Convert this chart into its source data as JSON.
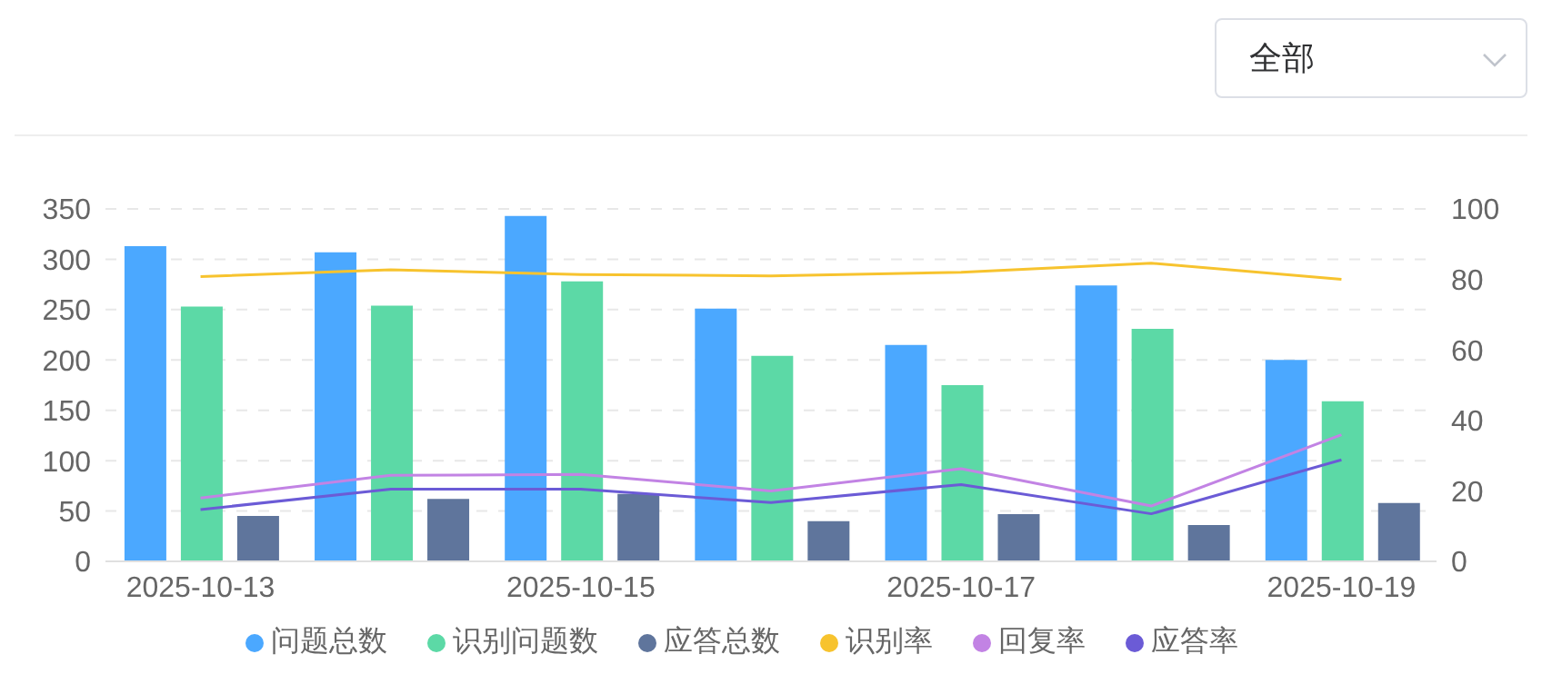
{
  "chart_data": {
    "type": "bar",
    "categories": [
      "2025-10-13",
      null,
      "2025-10-15",
      null,
      "2025-10-17",
      null,
      "2025-10-19"
    ],
    "series": [
      {
        "name": "问题总数",
        "color": "#4ba8ff",
        "values": [
          313,
          307,
          343,
          251,
          215,
          274,
          200
        ]
      },
      {
        "name": "识别问题数",
        "color": "#5cd9a6",
        "values": [
          253,
          254,
          278,
          204,
          175,
          231,
          159
        ]
      },
      {
        "name": "应答总数",
        "color": "#5f759c",
        "values": [
          45,
          62,
          67,
          40,
          47,
          36,
          58
        ]
      },
      {
        "name": "识别率",
        "type": "line",
        "axis": "y2",
        "color": "#f7c32e",
        "values": [
          80.8,
          82.7,
          81.4,
          81,
          82,
          84.6,
          80
        ]
      },
      {
        "name": "回复率",
        "type": "line",
        "axis": "y2",
        "color": "#c283e4",
        "values": [
          18,
          24.4,
          24.7,
          20,
          26.3,
          15.7,
          35.9
        ]
      },
      {
        "name": "应答率",
        "type": "line",
        "axis": "y2",
        "color": "#6b5bd6",
        "values": [
          14.7,
          20.5,
          20.5,
          16.7,
          21.8,
          13.5,
          28.8
        ]
      }
    ],
    "ylim": [
      0,
      350
    ],
    "yticks": [
      0,
      50,
      100,
      150,
      200,
      250,
      300,
      350
    ],
    "y2lim": [
      0,
      100
    ],
    "y2ticks": [
      0,
      20,
      40,
      60,
      80,
      100
    ],
    "grid": "y",
    "legend": "bottom",
    "marker": "none",
    "annotations": [
      "全部"
    ]
  }
}
